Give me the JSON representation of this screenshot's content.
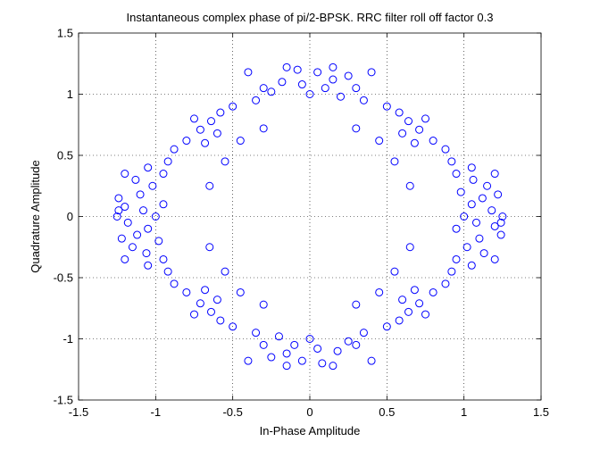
{
  "chart_data": {
    "type": "scatter",
    "title": "Instantaneous complex phase of pi/2-BPSK. RRC filter roll off factor 0.3",
    "xlabel": "In-Phase Amplitude",
    "ylabel": "Quadrature Amplitude",
    "xlim": [
      -1.5,
      1.5
    ],
    "ylim": [
      -1.5,
      1.5
    ],
    "xticks": [
      -1.5,
      -1,
      -0.5,
      0,
      0.5,
      1,
      1.5
    ],
    "yticks": [
      -1.5,
      -1,
      -0.5,
      0,
      0.5,
      1,
      1.5
    ],
    "xtick_labels": [
      "-1.5",
      "-1",
      "-0.5",
      "0",
      "0.5",
      "1",
      "1.5"
    ],
    "ytick_labels": [
      "-1.5",
      "-1",
      "-0.5",
      "0",
      "0.5",
      "1",
      "1.5"
    ],
    "grid": true,
    "marker": "circle-open",
    "marker_color": "#0000ff",
    "points": [
      [
        1.0,
        0.0
      ],
      [
        1.05,
        0.1
      ],
      [
        1.08,
        -0.05
      ],
      [
        1.12,
        0.15
      ],
      [
        1.1,
        -0.18
      ],
      [
        1.18,
        0.05
      ],
      [
        1.2,
        -0.08
      ],
      [
        1.15,
        0.25
      ],
      [
        1.02,
        -0.25
      ],
      [
        0.98,
        0.2
      ],
      [
        1.22,
        0.18
      ],
      [
        1.24,
        -0.15
      ],
      [
        1.06,
        0.3
      ],
      [
        0.95,
        -0.1
      ],
      [
        1.13,
        -0.3
      ],
      [
        -1.0,
        0.0
      ],
      [
        -1.05,
        -0.1
      ],
      [
        -1.08,
        0.05
      ],
      [
        -1.12,
        -0.15
      ],
      [
        -1.1,
        0.18
      ],
      [
        -1.18,
        -0.05
      ],
      [
        -1.2,
        0.08
      ],
      [
        -1.15,
        -0.25
      ],
      [
        -1.02,
        0.25
      ],
      [
        -0.98,
        -0.2
      ],
      [
        -1.22,
        -0.18
      ],
      [
        -1.24,
        0.15
      ],
      [
        -1.06,
        -0.3
      ],
      [
        -0.95,
        0.1
      ],
      [
        -1.13,
        0.3
      ],
      [
        0.0,
        1.0
      ],
      [
        0.1,
        1.05
      ],
      [
        -0.05,
        1.08
      ],
      [
        0.15,
        1.12
      ],
      [
        -0.18,
        1.1
      ],
      [
        0.05,
        1.18
      ],
      [
        -0.08,
        1.2
      ],
      [
        0.25,
        1.15
      ],
      [
        -0.25,
        1.02
      ],
      [
        0.2,
        0.98
      ],
      [
        0.0,
        -1.0
      ],
      [
        -0.1,
        -1.05
      ],
      [
        0.05,
        -1.08
      ],
      [
        -0.15,
        -1.12
      ],
      [
        0.18,
        -1.1
      ],
      [
        -0.05,
        -1.18
      ],
      [
        0.08,
        -1.2
      ],
      [
        -0.25,
        -1.15
      ],
      [
        0.25,
        -1.02
      ],
      [
        -0.2,
        -0.98
      ],
      [
        0.71,
        0.71
      ],
      [
        0.64,
        0.78
      ],
      [
        0.8,
        0.62
      ],
      [
        0.58,
        0.85
      ],
      [
        0.88,
        0.55
      ],
      [
        0.75,
        0.8
      ],
      [
        0.5,
        0.9
      ],
      [
        0.92,
        0.45
      ],
      [
        0.68,
        0.6
      ],
      [
        0.6,
        0.68
      ],
      [
        -0.71,
        0.71
      ],
      [
        -0.64,
        0.78
      ],
      [
        -0.8,
        0.62
      ],
      [
        -0.58,
        0.85
      ],
      [
        -0.88,
        0.55
      ],
      [
        -0.75,
        0.8
      ],
      [
        -0.5,
        0.9
      ],
      [
        -0.92,
        0.45
      ],
      [
        -0.68,
        0.6
      ],
      [
        -0.6,
        0.68
      ],
      [
        0.71,
        -0.71
      ],
      [
        0.64,
        -0.78
      ],
      [
        0.8,
        -0.62
      ],
      [
        0.58,
        -0.85
      ],
      [
        0.88,
        -0.55
      ],
      [
        0.75,
        -0.8
      ],
      [
        0.5,
        -0.9
      ],
      [
        0.92,
        -0.45
      ],
      [
        0.68,
        -0.6
      ],
      [
        0.6,
        -0.68
      ],
      [
        -0.71,
        -0.71
      ],
      [
        -0.64,
        -0.78
      ],
      [
        -0.8,
        -0.62
      ],
      [
        -0.58,
        -0.85
      ],
      [
        -0.88,
        -0.55
      ],
      [
        -0.75,
        -0.8
      ],
      [
        -0.5,
        -0.9
      ],
      [
        -0.92,
        -0.45
      ],
      [
        -0.68,
        -0.6
      ],
      [
        -0.6,
        -0.68
      ],
      [
        0.35,
        0.95
      ],
      [
        -0.35,
        0.95
      ],
      [
        0.35,
        -0.95
      ],
      [
        -0.35,
        -0.95
      ],
      [
        0.95,
        0.35
      ],
      [
        -0.95,
        0.35
      ],
      [
        0.95,
        -0.35
      ],
      [
        -0.95,
        -0.35
      ],
      [
        0.3,
        1.05
      ],
      [
        -0.3,
        1.05
      ],
      [
        0.3,
        -1.05
      ],
      [
        -0.3,
        -1.05
      ],
      [
        1.05,
        0.4
      ],
      [
        -1.05,
        0.4
      ],
      [
        1.05,
        -0.4
      ],
      [
        -1.05,
        -0.4
      ],
      [
        0.45,
        0.62
      ],
      [
        -0.45,
        0.62
      ],
      [
        0.45,
        -0.62
      ],
      [
        -0.45,
        -0.62
      ],
      [
        0.3,
        0.72
      ],
      [
        -0.3,
        0.72
      ],
      [
        0.3,
        -0.72
      ],
      [
        -0.3,
        -0.72
      ],
      [
        -0.55,
        0.45
      ],
      [
        0.55,
        0.45
      ],
      [
        -0.55,
        -0.45
      ],
      [
        0.55,
        -0.45
      ],
      [
        -0.65,
        0.25
      ],
      [
        0.65,
        0.25
      ],
      [
        -0.65,
        -0.25
      ],
      [
        0.65,
        -0.25
      ],
      [
        0.4,
        1.18
      ],
      [
        -0.4,
        1.18
      ],
      [
        0.4,
        -1.18
      ],
      [
        -0.4,
        -1.18
      ],
      [
        0.15,
        1.22
      ],
      [
        -0.15,
        1.22
      ],
      [
        0.15,
        -1.22
      ],
      [
        -0.15,
        -1.22
      ],
      [
        1.2,
        0.35
      ],
      [
        -1.2,
        0.35
      ],
      [
        1.2,
        -0.35
      ],
      [
        -1.2,
        -0.35
      ],
      [
        1.25,
        0.0
      ],
      [
        -1.25,
        0.0
      ],
      [
        1.24,
        -0.05
      ],
      [
        -1.24,
        0.05
      ]
    ]
  }
}
